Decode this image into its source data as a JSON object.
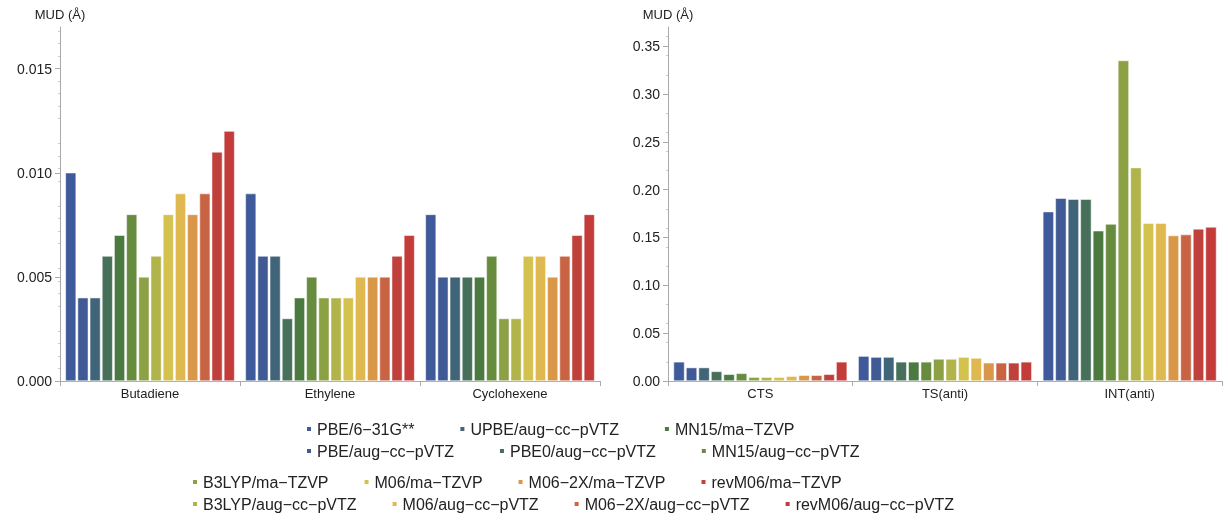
{
  "chart_data": [
    {
      "type": "bar",
      "ylabel": "MUD (Å)",
      "categories": [
        "Butadiene",
        "Ethylene",
        "Cyclohexene"
      ],
      "ylim": [
        0,
        0.017
      ],
      "yticks": [
        {
          "value": 0,
          "label": "0.000"
        },
        {
          "value": 0.005,
          "label": "0.005"
        },
        {
          "value": 0.01,
          "label": "0.010"
        },
        {
          "value": 0.015,
          "label": "0.015"
        }
      ],
      "grid": false,
      "legend": "bottom",
      "series": [
        {
          "name": "PBE/6−31G**",
          "color": "#3f5a9a",
          "values": [
            0.01,
            0.009,
            0.008
          ]
        },
        {
          "name": "PBE/aug−cc−pVTZ",
          "color": "#3f5a94",
          "values": [
            0.004,
            0.006,
            0.005
          ]
        },
        {
          "name": "UPBE/aug−cc−pVTZ",
          "color": "#406478",
          "values": [
            0.004,
            0.006,
            0.005
          ]
        },
        {
          "name": "PBE0/aug−cc−pVTZ",
          "color": "#47705a",
          "values": [
            0.006,
            0.003,
            0.005
          ]
        },
        {
          "name": "MN15/ma−TZVP",
          "color": "#4a7a40",
          "values": [
            0.007,
            0.004,
            0.005
          ]
        },
        {
          "name": "MN15/aug−cc−pVTZ",
          "color": "#678c3e",
          "values": [
            0.008,
            0.005,
            0.006
          ]
        },
        {
          "name": "B3LYP/ma−TZVP",
          "color": "#8ca044",
          "values": [
            0.005,
            0.004,
            0.003
          ]
        },
        {
          "name": "B3LYP/aug−cc−pVTZ",
          "color": "#b0b44a",
          "values": [
            0.006,
            0.004,
            0.003
          ]
        },
        {
          "name": "M06/ma−TZVP",
          "color": "#d4c24e",
          "values": [
            0.008,
            0.004,
            0.006
          ]
        },
        {
          "name": "M06/aug−cc−pVTZ",
          "color": "#e0b850",
          "values": [
            0.009,
            0.005,
            0.006
          ]
        },
        {
          "name": "M06−2X/ma−TZVP",
          "color": "#d9974a",
          "values": [
            0.008,
            0.005,
            0.005
          ]
        },
        {
          "name": "M06−2X/aug−cc−pVTZ",
          "color": "#c86444",
          "values": [
            0.009,
            0.005,
            0.006
          ]
        },
        {
          "name": "revM06/ma−TZVP",
          "color": "#c0413c",
          "values": [
            0.011,
            0.006,
            0.007
          ]
        },
        {
          "name": "revM06/aug−cc−pVTZ",
          "color": "#c43c3a",
          "values": [
            0.012,
            0.007,
            0.008
          ]
        }
      ]
    },
    {
      "type": "bar",
      "ylabel": "MUD (Å)",
      "categories": [
        "CTS",
        "TS(anti)",
        "INT(anti)"
      ],
      "ylim": [
        0,
        0.37
      ],
      "yticks": [
        {
          "value": 0,
          "label": "0.00"
        },
        {
          "value": 0.05,
          "label": "0.05"
        },
        {
          "value": 0.1,
          "label": "0.10"
        },
        {
          "value": 0.15,
          "label": "0.15"
        },
        {
          "value": 0.2,
          "label": "0.20"
        },
        {
          "value": 0.25,
          "label": "0.25"
        },
        {
          "value": 0.3,
          "label": "0.30"
        },
        {
          "value": 0.35,
          "label": "0.35"
        }
      ],
      "grid": false,
      "series": [
        {
          "color": "#3f5a9a",
          "values": [
            0.02,
            0.026,
            0.177
          ]
        },
        {
          "color": "#3f5a94",
          "values": [
            0.014,
            0.025,
            0.191
          ]
        },
        {
          "color": "#406478",
          "values": [
            0.014,
            0.025,
            0.19
          ]
        },
        {
          "color": "#47705a",
          "values": [
            0.01,
            0.02,
            0.19
          ]
        },
        {
          "color": "#4a7a40",
          "values": [
            0.007,
            0.02,
            0.157
          ]
        },
        {
          "color": "#678c3e",
          "values": [
            0.008,
            0.02,
            0.164
          ]
        },
        {
          "color": "#8ca044",
          "values": [
            0.004,
            0.023,
            0.335
          ]
        },
        {
          "color": "#b0b44a",
          "values": [
            0.004,
            0.023,
            0.223
          ]
        },
        {
          "color": "#d4c24e",
          "values": [
            0.004,
            0.025,
            0.165
          ]
        },
        {
          "color": "#e0b850",
          "values": [
            0.005,
            0.024,
            0.165
          ]
        },
        {
          "color": "#d9974a",
          "values": [
            0.006,
            0.019,
            0.152
          ]
        },
        {
          "color": "#c86444",
          "values": [
            0.006,
            0.019,
            0.153
          ]
        },
        {
          "color": "#c0413c",
          "values": [
            0.007,
            0.019,
            0.159
          ]
        },
        {
          "color": "#c43c3a",
          "values": [
            0.02,
            0.02,
            0.161
          ]
        }
      ]
    }
  ]
}
